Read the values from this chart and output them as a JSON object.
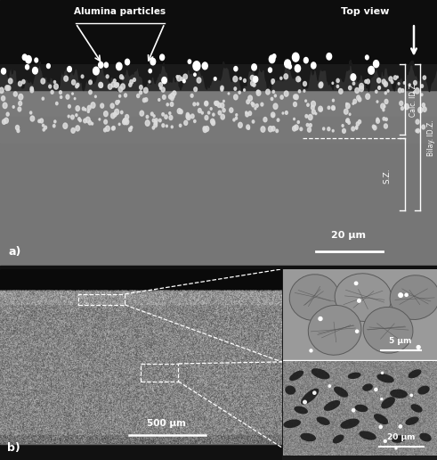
{
  "fig_width": 4.91,
  "fig_height": 5.16,
  "dpi": 100,
  "panel_a": {
    "bg_top": "#0a0a0a",
    "bg_surface": "#2a2a2a",
    "bg_upper_dz": "#6e6e6e",
    "bg_lower_sz": "#787878",
    "small_particle_color": "#cccccc",
    "bright_particle_color": "#ffffff",
    "alumina_text": "Alumina particles",
    "top_view_text": "Top view",
    "scale_text": "20 μm",
    "label": "a)",
    "bilay_text": "Bilay. ID.Z.",
    "calc_text": "Calc. ID.Z.",
    "sz_text": "S.Z."
  },
  "panel_b": {
    "bg_top": "#0a0a0a",
    "bg_body": "#888888",
    "bg_bottom": "#111111",
    "scale_text": "500 μm",
    "label": "b)"
  },
  "inset_top": {
    "bg": "#999999",
    "scale_text": "5 μm"
  },
  "inset_bot": {
    "bg": "#808080",
    "scale_text": "20 μm"
  },
  "white": "#ffffff",
  "black": "#000000"
}
